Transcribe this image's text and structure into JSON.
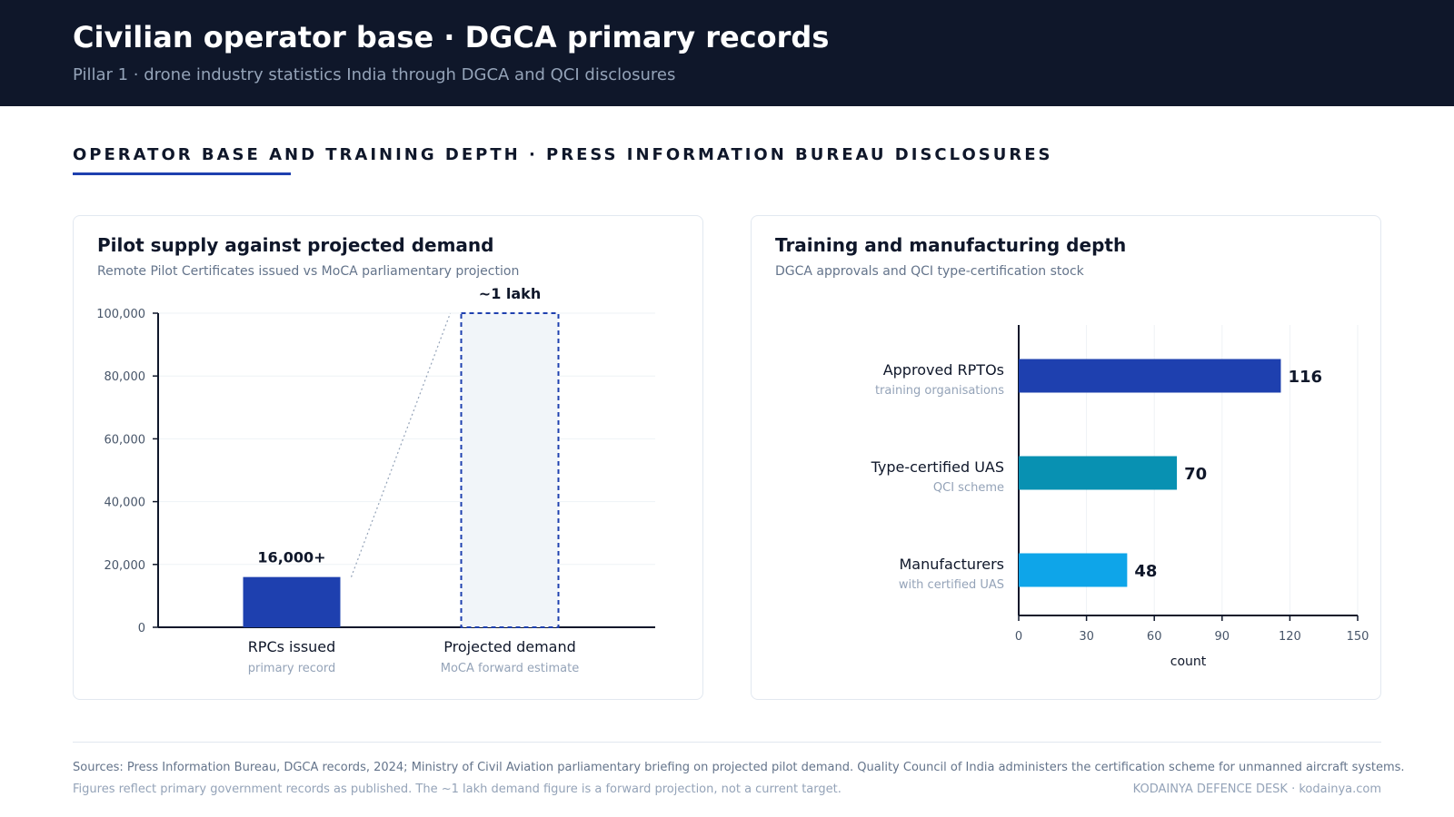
{
  "header": {
    "title": "Civilian operator base · DGCA primary records",
    "subtitle": "Pillar 1 · drone industry statistics India through DGCA and QCI disclosures"
  },
  "section": {
    "title": "OPERATOR BASE AND TRAINING DEPTH · PRESS INFORMATION BUREAU DISCLOSURES"
  },
  "colors": {
    "header_bg": "#0f172a",
    "accent": "#1e40af",
    "teal": "#0891b2",
    "sky": "#0ea5e9",
    "projection_fill": "#f1f5f9"
  },
  "chart_data": [
    {
      "type": "bar",
      "title": "Pilot supply against projected demand",
      "subtitle": "Remote Pilot Certificates issued vs MoCA parliamentary projection",
      "categories": [
        "RPCs issued",
        "Projected demand"
      ],
      "category_notes": [
        "primary record",
        "MoCA forward estimate"
      ],
      "values": [
        16000,
        100000
      ],
      "value_labels": [
        "16,000+",
        "~1 lakh"
      ],
      "ylim": [
        0,
        100000
      ],
      "yticks": [
        0,
        20000,
        40000,
        60000,
        80000,
        100000
      ],
      "ytick_labels": [
        "0",
        "20,000",
        "40,000",
        "60,000",
        "80,000",
        "100,000"
      ],
      "grid": true,
      "xlabel": "",
      "ylabel": ""
    },
    {
      "type": "bar",
      "orientation": "horizontal",
      "title": "Training and manufacturing depth",
      "subtitle": "DGCA approvals and QCI type-certification stock",
      "categories": [
        "Approved RPTOs",
        "Type-certified UAS",
        "Manufacturers"
      ],
      "category_notes": [
        "training organisations",
        "QCI scheme",
        "with certified UAS"
      ],
      "values": [
        116,
        70,
        48
      ],
      "value_labels": [
        "116",
        "70",
        "48"
      ],
      "xlim": [
        0,
        150
      ],
      "xticks": [
        0,
        30,
        60,
        90,
        120,
        150
      ],
      "xtick_labels": [
        "0",
        "30",
        "60",
        "90",
        "120",
        "150"
      ],
      "xlabel": "count",
      "ylabel": "",
      "grid": true
    }
  ],
  "footer": {
    "sources": "Sources: Press Information Bureau, DGCA records, 2024; Ministry of Civil Aviation parliamentary briefing on projected pilot demand. Quality Council of India administers the certification scheme for unmanned aircraft systems.",
    "note": "Figures reflect primary government records as published. The ~1 lakh demand figure is a forward projection, not a current target.",
    "brand": "KODAINYA DEFENCE DESK · kodainya.com"
  }
}
